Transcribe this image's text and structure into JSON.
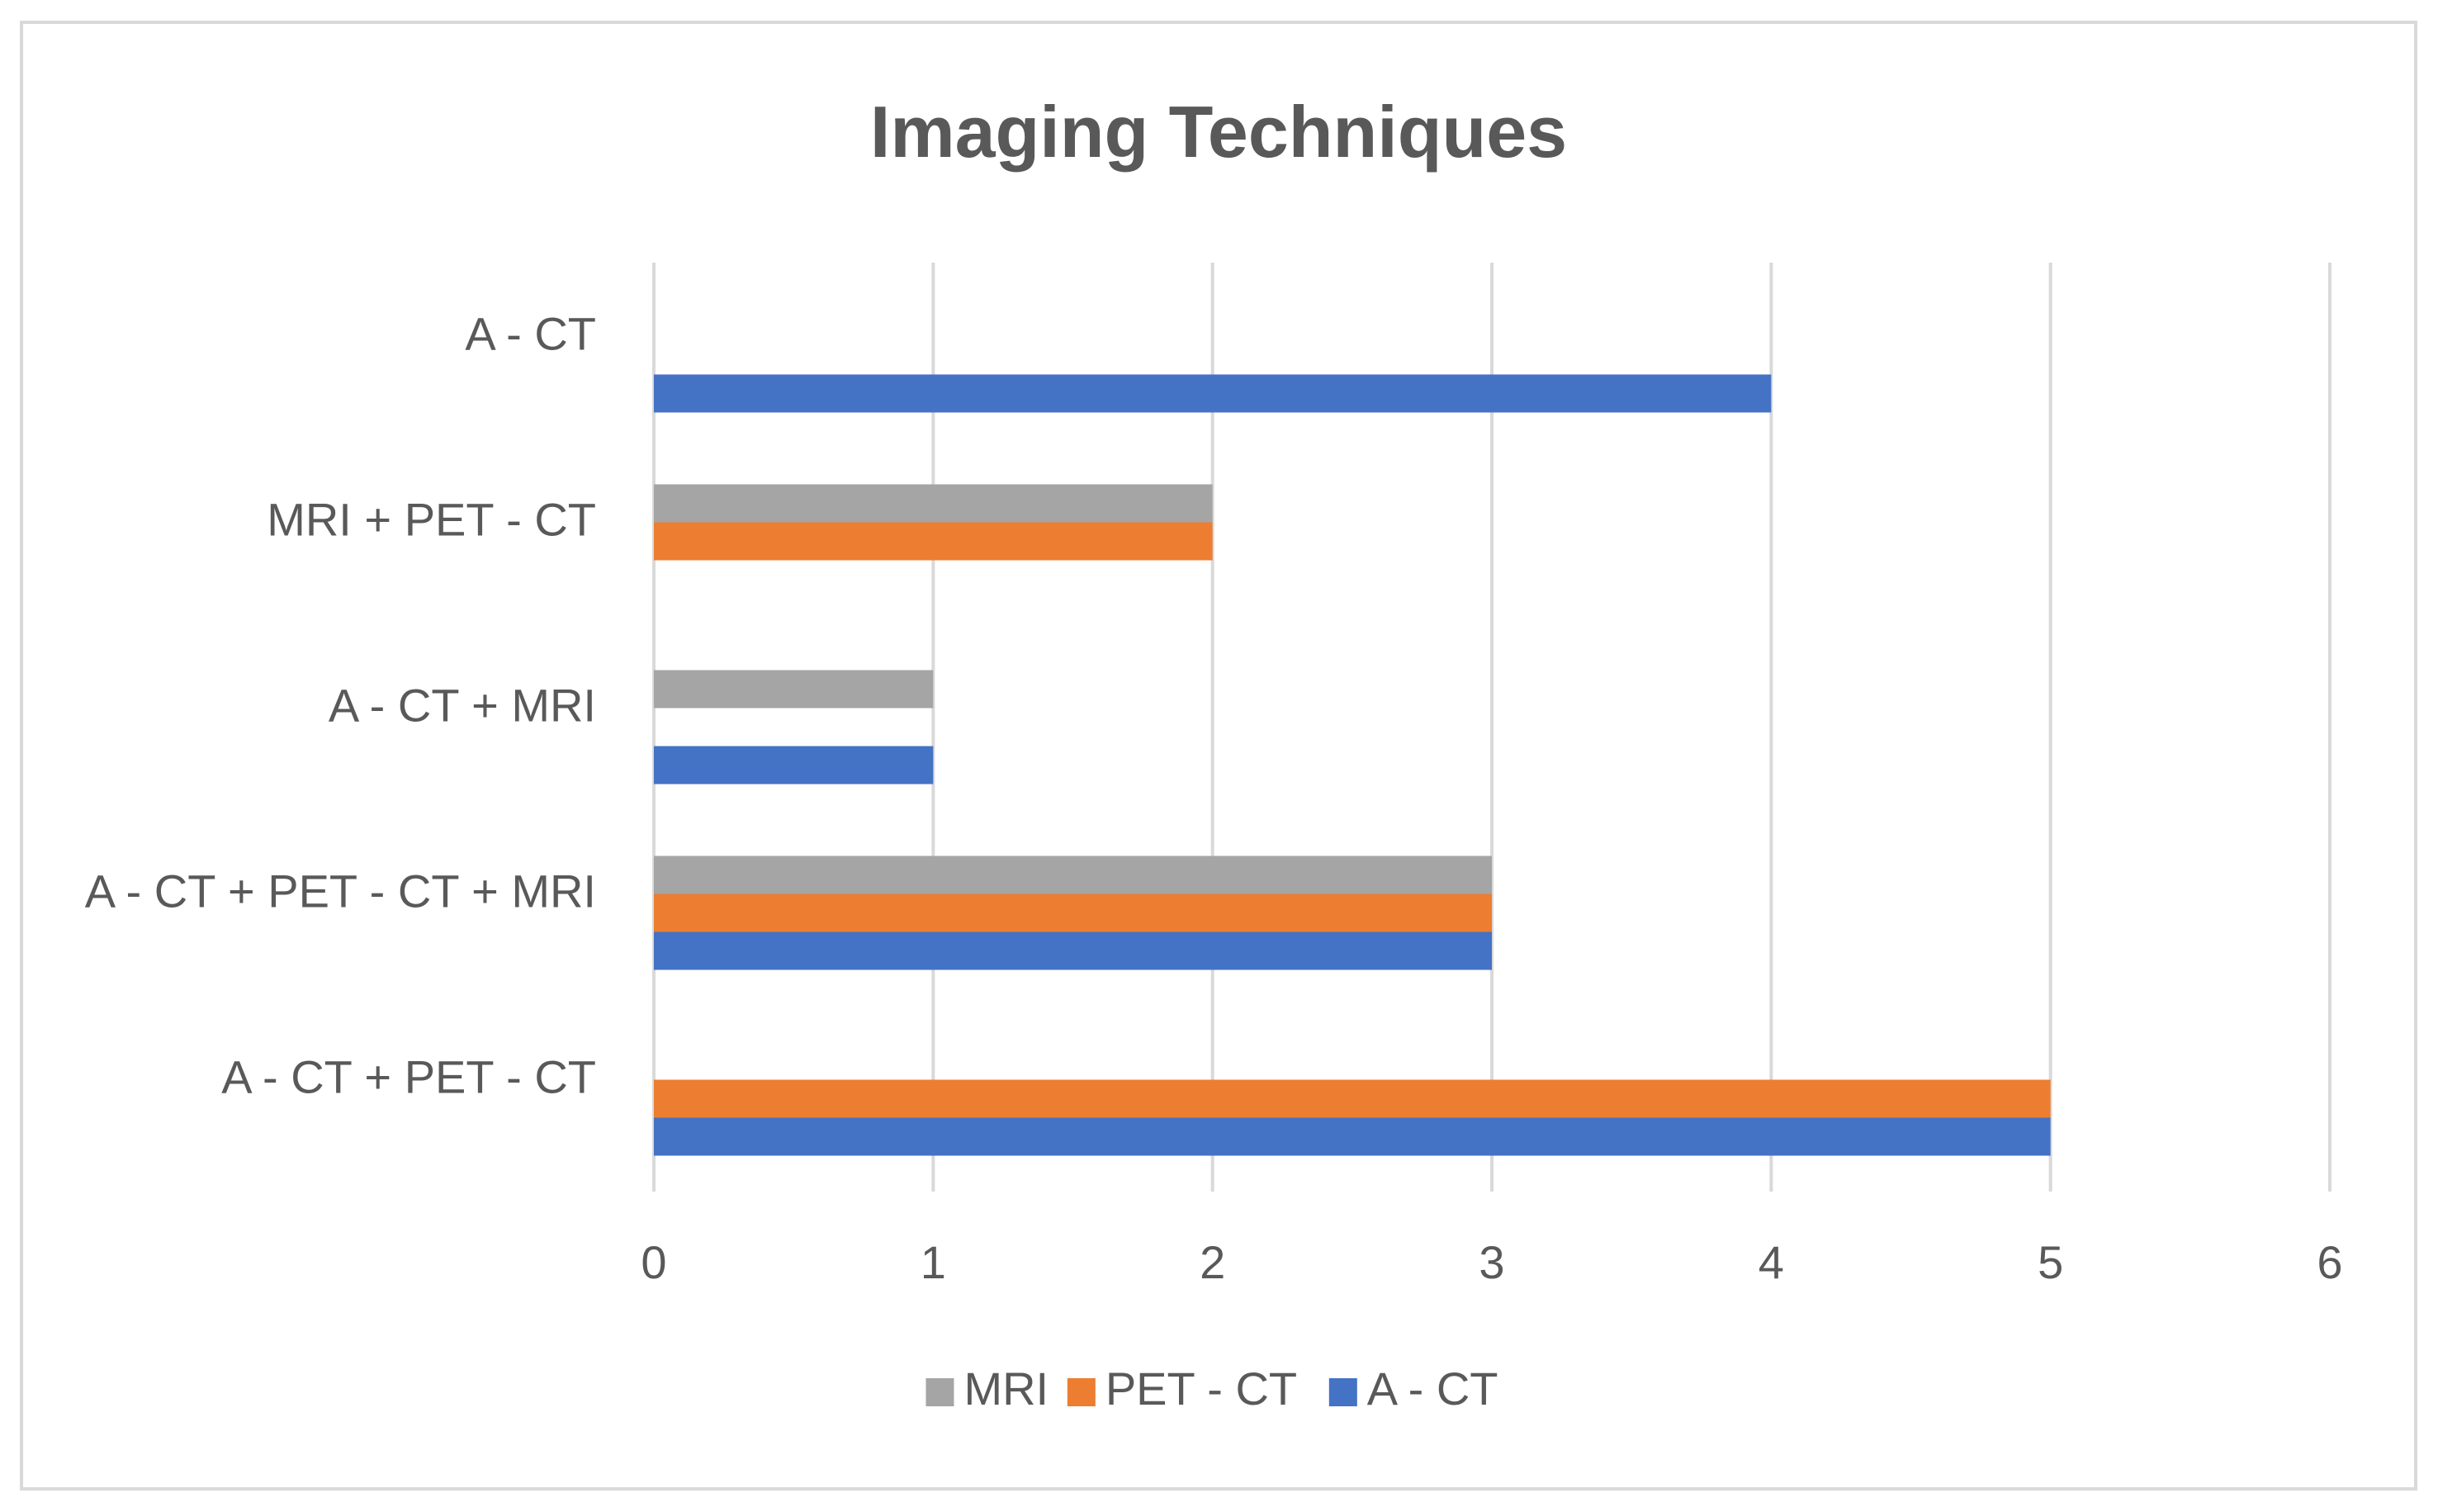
{
  "chart_data": {
    "type": "bar",
    "orientation": "horizontal",
    "title": "Imaging Techniques",
    "xlabel": "",
    "ylabel": "",
    "categories": [
      "A - CT + PET - CT",
      "A - CT + PET - CT + MRI",
      "A - CT + MRI",
      "MRI + PET - CT",
      "A - CT"
    ],
    "series": [
      {
        "name": "A - CT",
        "color": "#4472C4",
        "values": [
          5,
          3,
          1,
          0,
          4
        ]
      },
      {
        "name": "PET - CT",
        "color": "#ED7D31",
        "values": [
          5,
          3,
          0,
          2,
          0
        ]
      },
      {
        "name": "MRI",
        "color": "#A5A5A5",
        "values": [
          0,
          3,
          1,
          2,
          0
        ]
      }
    ],
    "xlim": [
      0,
      6
    ],
    "x_ticks": [
      0,
      1,
      2,
      3,
      4,
      5,
      6
    ],
    "grid": "vertical",
    "legend": {
      "position": "bottom",
      "order": [
        "MRI",
        "PET - CT",
        "A - CT"
      ]
    }
  },
  "colors": {
    "title_text": "#595959",
    "axis_text": "#595959",
    "gridline": "#D9D9D9",
    "frame": "#D9D9D9"
  }
}
